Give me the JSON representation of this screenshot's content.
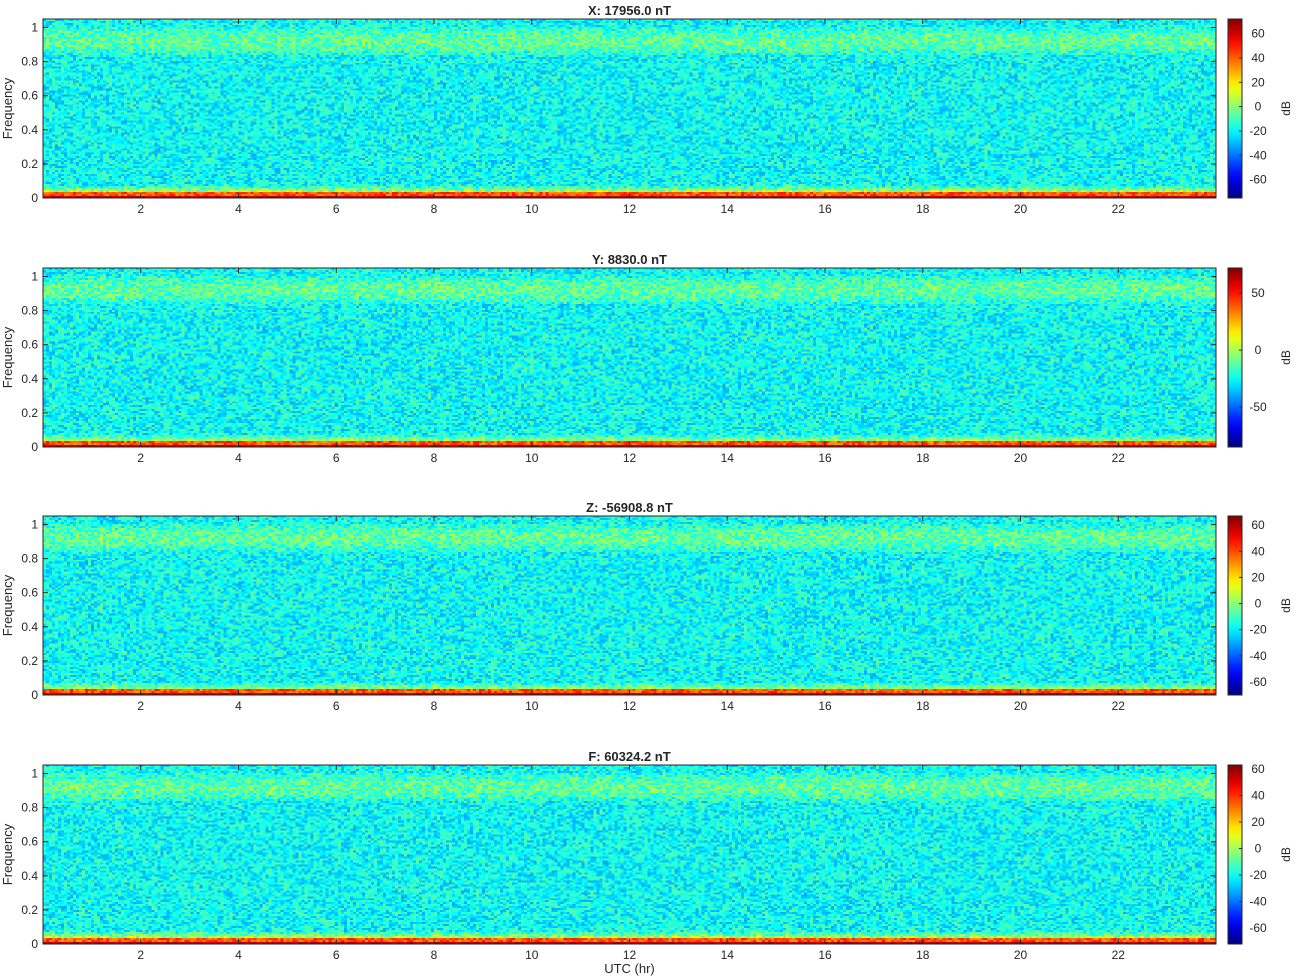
{
  "chart_data": [
    {
      "type": "heatmap",
      "title": "X: 17956.0 nT",
      "xlabel": "",
      "ylabel": "Frequency",
      "xlim": [
        0,
        24
      ],
      "ylim": [
        0,
        1.05
      ],
      "xticks": [
        2,
        4,
        6,
        8,
        10,
        12,
        14,
        16,
        18,
        20,
        22
      ],
      "yticks": [
        0,
        0.2,
        0.4,
        0.6,
        0.8,
        1
      ],
      "colorbar": {
        "label": "dB",
        "ticks": [
          -60,
          -40,
          -20,
          0,
          20,
          40,
          60
        ],
        "range": [
          -75,
          72
        ],
        "colormap": "jet"
      },
      "grid": false
    },
    {
      "type": "heatmap",
      "title": "Y: 8830.0 nT",
      "xlabel": "",
      "ylabel": "Frequency",
      "xlim": [
        0,
        24
      ],
      "ylim": [
        0,
        1.05
      ],
      "xticks": [
        2,
        4,
        6,
        8,
        10,
        12,
        14,
        16,
        18,
        20,
        22
      ],
      "yticks": [
        0,
        0.2,
        0.4,
        0.6,
        0.8,
        1
      ],
      "colorbar": {
        "label": "dB",
        "ticks": [
          -50,
          0,
          50
        ],
        "range": [
          -85,
          72
        ],
        "colormap": "jet"
      },
      "grid": false
    },
    {
      "type": "heatmap",
      "title": "Z: -56908.8 nT",
      "xlabel": "",
      "ylabel": "Frequency",
      "xlim": [
        0,
        24
      ],
      "ylim": [
        0,
        1.05
      ],
      "xticks": [
        2,
        4,
        6,
        8,
        10,
        12,
        14,
        16,
        18,
        20,
        22
      ],
      "yticks": [
        0,
        0.2,
        0.4,
        0.6,
        0.8,
        1
      ],
      "colorbar": {
        "label": "dB",
        "ticks": [
          -60,
          -40,
          -20,
          0,
          20,
          40,
          60
        ],
        "range": [
          -70,
          67
        ],
        "colormap": "jet"
      },
      "grid": false
    },
    {
      "type": "heatmap",
      "title": "F: 60324.2 nT",
      "xlabel": "UTC (hr)",
      "ylabel": "Frequency",
      "xlim": [
        0,
        24
      ],
      "ylim": [
        0,
        1.05
      ],
      "xticks": [
        2,
        4,
        6,
        8,
        10,
        12,
        14,
        16,
        18,
        20,
        22
      ],
      "yticks": [
        0,
        0.2,
        0.4,
        0.6,
        0.8,
        1
      ],
      "colorbar": {
        "label": "dB",
        "ticks": [
          -60,
          -40,
          -20,
          0,
          20,
          40,
          60
        ],
        "range": [
          -72,
          63
        ],
        "colormap": "jet"
      },
      "grid": false
    }
  ]
}
